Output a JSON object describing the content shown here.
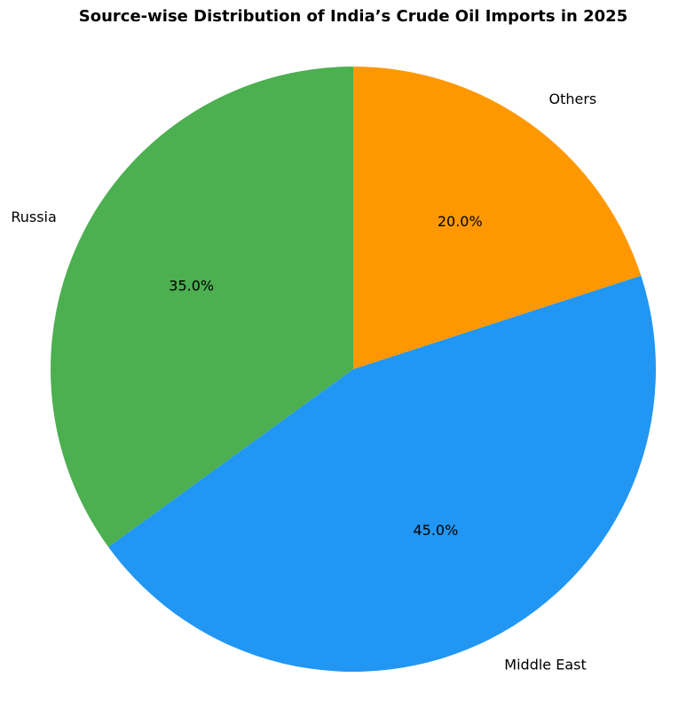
{
  "chart_data": {
    "type": "pie",
    "title": "Source-wise Distribution of India’s Crude Oil Imports in 2025",
    "categories": [
      "Russia",
      "Middle East",
      "Others"
    ],
    "values": [
      35,
      45,
      20
    ],
    "value_labels": [
      "35.0%",
      "45.0%",
      "20.0%"
    ],
    "colors": [
      "#4caf50",
      "#2196f3",
      "#ff9800"
    ],
    "start_angle": 90,
    "counterclockwise": true
  }
}
